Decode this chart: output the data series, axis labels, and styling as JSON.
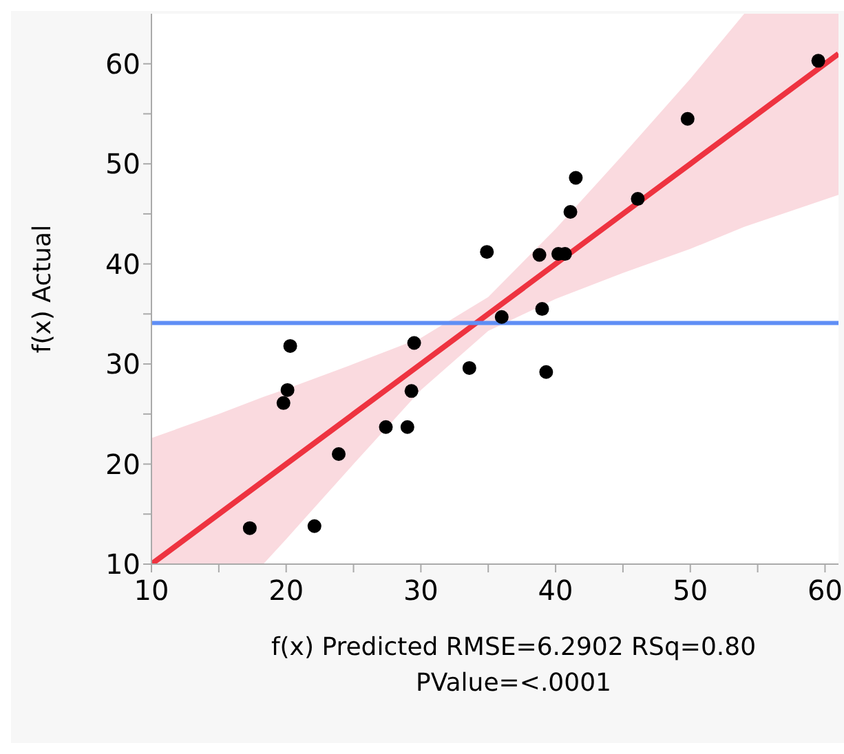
{
  "chart_data": {
    "type": "scatter",
    "xlabel": "f(x) Predicted RMSE=6.2902 RSq=0.80 PValue=<.0001",
    "ylabel": "f(x) Actual",
    "xlim": [
      10,
      61
    ],
    "ylim": [
      10,
      65
    ],
    "xticks": [
      10,
      {
        "value": 15,
        "label": null
      },
      20,
      {
        "value": 25,
        "label": null
      },
      30,
      {
        "value": 35,
        "label": null
      },
      40,
      {
        "value": 45,
        "label": null
      },
      50,
      {
        "value": 55,
        "label": null
      },
      60
    ],
    "yticks": [
      10,
      {
        "value": 15,
        "label": null
      },
      20,
      {
        "value": 25,
        "label": null
      },
      30,
      {
        "value": 35,
        "label": null
      },
      40,
      {
        "value": 45,
        "label": null
      },
      50,
      {
        "value": 55,
        "label": null
      },
      60
    ],
    "grid": false,
    "ref_lines": [
      {
        "axis": "y",
        "value": 34.1,
        "color": "#5f8ef5"
      }
    ],
    "series": [
      {
        "type": "scatter",
        "color": "#000000",
        "marker": "circle",
        "x": [
          17.3,
          19.8,
          20.1,
          20.3,
          22.1,
          23.9,
          27.4,
          29.0,
          29.3,
          29.5,
          33.6,
          34.9,
          36.0,
          38.8,
          39.0,
          39.3,
          40.2,
          40.7,
          41.1,
          41.5,
          46.1,
          49.8,
          59.5
        ],
        "values": [
          13.6,
          26.1,
          27.4,
          31.8,
          13.8,
          21.0,
          23.7,
          23.7,
          27.3,
          32.1,
          29.6,
          41.2,
          34.7,
          40.9,
          35.5,
          29.2,
          41.0,
          41.0,
          45.2,
          48.6,
          46.5,
          54.5,
          60.3
        ]
      },
      {
        "type": "line",
        "color": "#ee3340",
        "x": [
          10,
          15,
          18.3,
          20,
          25,
          30,
          35,
          40,
          45,
          50,
          54,
          61
        ],
        "values": [
          10,
          15,
          18.3,
          20,
          25,
          30,
          35,
          40,
          45,
          50,
          54,
          61
        ],
        "lower": [
          10,
          10,
          10,
          12.5,
          20.0,
          27.4,
          33.3,
          36.5,
          39.1,
          41.5,
          43.7,
          46.9
        ],
        "upper": [
          22.6,
          25.0,
          26.7,
          27.5,
          30.0,
          32.6,
          36.7,
          43.5,
          50.9,
          58.5,
          65,
          65
        ]
      }
    ]
  }
}
